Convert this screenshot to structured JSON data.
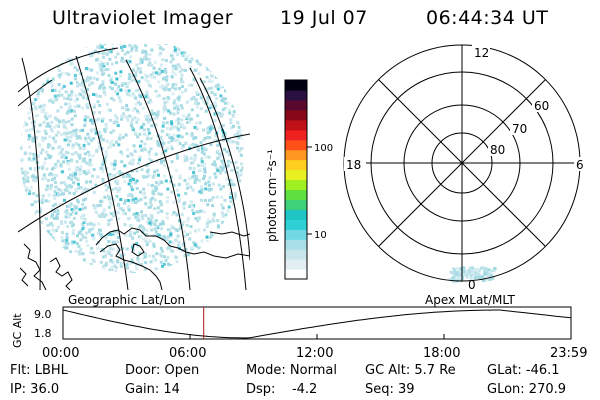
{
  "header": {
    "instrument": "Ultraviolet Imager",
    "date": "19 Jul 07",
    "time": "06:44:34 UT"
  },
  "geo_panel": {
    "label": "Geographic Lat/Lon",
    "base_colors": [
      "#d8eef2",
      "#c8e6ee",
      "#b8e0e6",
      "#a8dce4",
      "#9ed8e2"
    ],
    "speck_colors": [
      "#5cc8d8",
      "#4ec6d4",
      "#3cc0d0"
    ]
  },
  "colorbar": {
    "unit_label": "photon cm⁻²s⁻¹",
    "tick_100": "100",
    "tick_10": "10",
    "colors": [
      "#ffffff",
      "#e3eef2",
      "#c9e6ec",
      "#a9e0e8",
      "#6fd8e2",
      "#2fcfd6",
      "#1fc4c4",
      "#3fd07a",
      "#5fe040",
      "#9ff020",
      "#e8f020",
      "#ffd020",
      "#ff9820",
      "#ff5018",
      "#ee2020",
      "#c01018",
      "#880818",
      "#5a0830",
      "#2a1040",
      "#000010"
    ]
  },
  "polar_panel": {
    "label": "Apex MLat/MLT",
    "mlt_top": "12",
    "mlt_left": "18",
    "mlt_right": "6",
    "mlt_bottom": "0",
    "lat_60": "60",
    "lat_70": "70",
    "lat_80": "80"
  },
  "altitude_plot": {
    "ylabel": "GC Alt",
    "ytick_high": "9.0",
    "ytick_low": "1.8",
    "xticks": [
      "00:00",
      "06:00",
      "12:00",
      "18:00",
      "23:59"
    ],
    "marker_color": "#b01818",
    "curve_color": "#000000"
  },
  "footer": {
    "filter": "Flt: LBHL",
    "door": "Door: Open",
    "mode": "Mode: Normal",
    "gc_alt": "GC Alt: 5.7 Re",
    "glat": "GLat: -46.1",
    "ip": "IP: 36.0",
    "gain": "Gain: 14",
    "dsp": "Dsp:    -4.2",
    "seq": "Seq: 39",
    "glon": "GLon: 270.9"
  }
}
